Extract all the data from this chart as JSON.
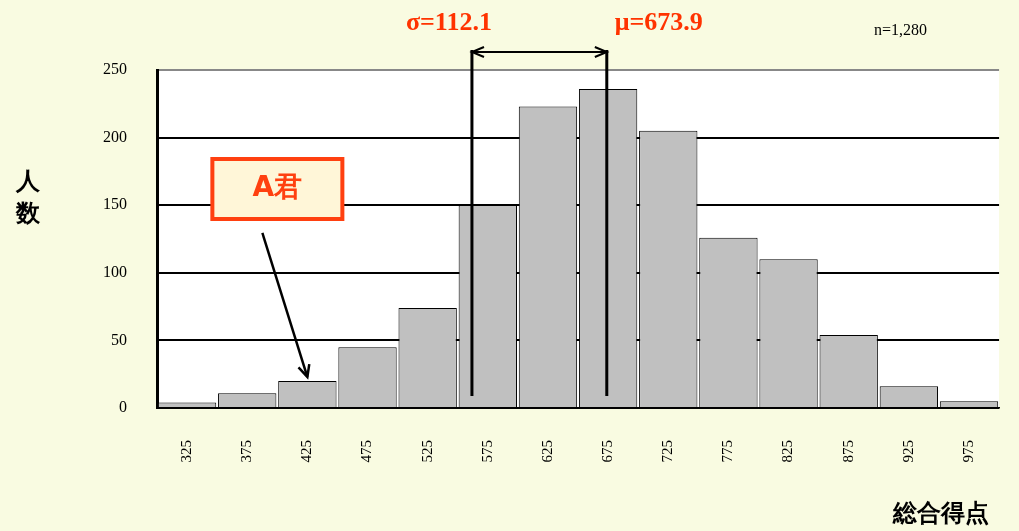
{
  "chart_data": {
    "type": "histogram",
    "ylabel": "人数",
    "xlabel": "総合得点",
    "bins": [
      300,
      350,
      400,
      450,
      500,
      550,
      600,
      650,
      700,
      750,
      800,
      850,
      900,
      950,
      1000
    ],
    "values": [
      4,
      11,
      20,
      45,
      74,
      150,
      223,
      236,
      205,
      126,
      110,
      54,
      16,
      5
    ],
    "color": "#c0c0c0",
    "xlim": [
      300,
      1000
    ],
    "xticks": [
      325,
      375,
      425,
      475,
      525,
      575,
      625,
      675,
      725,
      775,
      825,
      875,
      925,
      975
    ],
    "ylim": [
      0,
      250
    ],
    "yticks": [
      0,
      50,
      100,
      150,
      200,
      250
    ],
    "grid": "y",
    "legend": false,
    "ref_lines": [
      {
        "axis": "x",
        "value": 673.9,
        "label": "μ=673.9"
      },
      {
        "axis": "x",
        "value": 561.8,
        "label": null
      }
    ],
    "annotations": [
      "σ=112.1",
      "n=1,280",
      {
        "text": "A君",
        "x": 425,
        "y": 20
      }
    ]
  }
}
